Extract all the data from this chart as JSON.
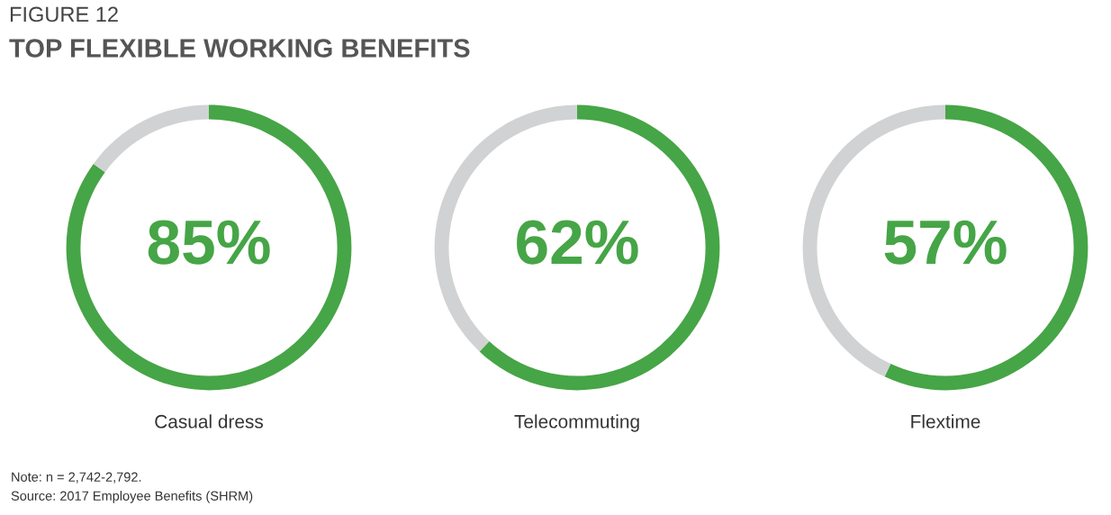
{
  "chart_data": [
    {
      "type": "donut",
      "subtitle": "FIGURE 12",
      "title": "TOP FLEXIBLE WORKING BENEFITS",
      "categories": [
        null,
        null
      ],
      "values": [
        85,
        15
      ],
      "colors": [
        "#46a546",
        "#d1d2d4"
      ],
      "value_labels": [
        "85%",
        null
      ],
      "xlabel": "Casual dress",
      "annotations": [
        "Note: n = 2,742-2,792.",
        "Source: 2017 Employee Benefits (SHRM)"
      ]
    },
    {
      "type": "donut",
      "categories": [
        null,
        null
      ],
      "values": [
        62,
        38
      ],
      "colors": [
        "#46a546",
        "#d1d2d4"
      ],
      "value_labels": [
        "62%",
        null
      ],
      "xlabel": "Telecommuting"
    },
    {
      "type": "donut",
      "categories": [
        null,
        null
      ],
      "values": [
        57,
        43
      ],
      "colors": [
        "#46a546",
        "#d1d2d4"
      ],
      "value_labels": [
        "57%",
        null
      ],
      "xlabel": "Flextime"
    }
  ]
}
